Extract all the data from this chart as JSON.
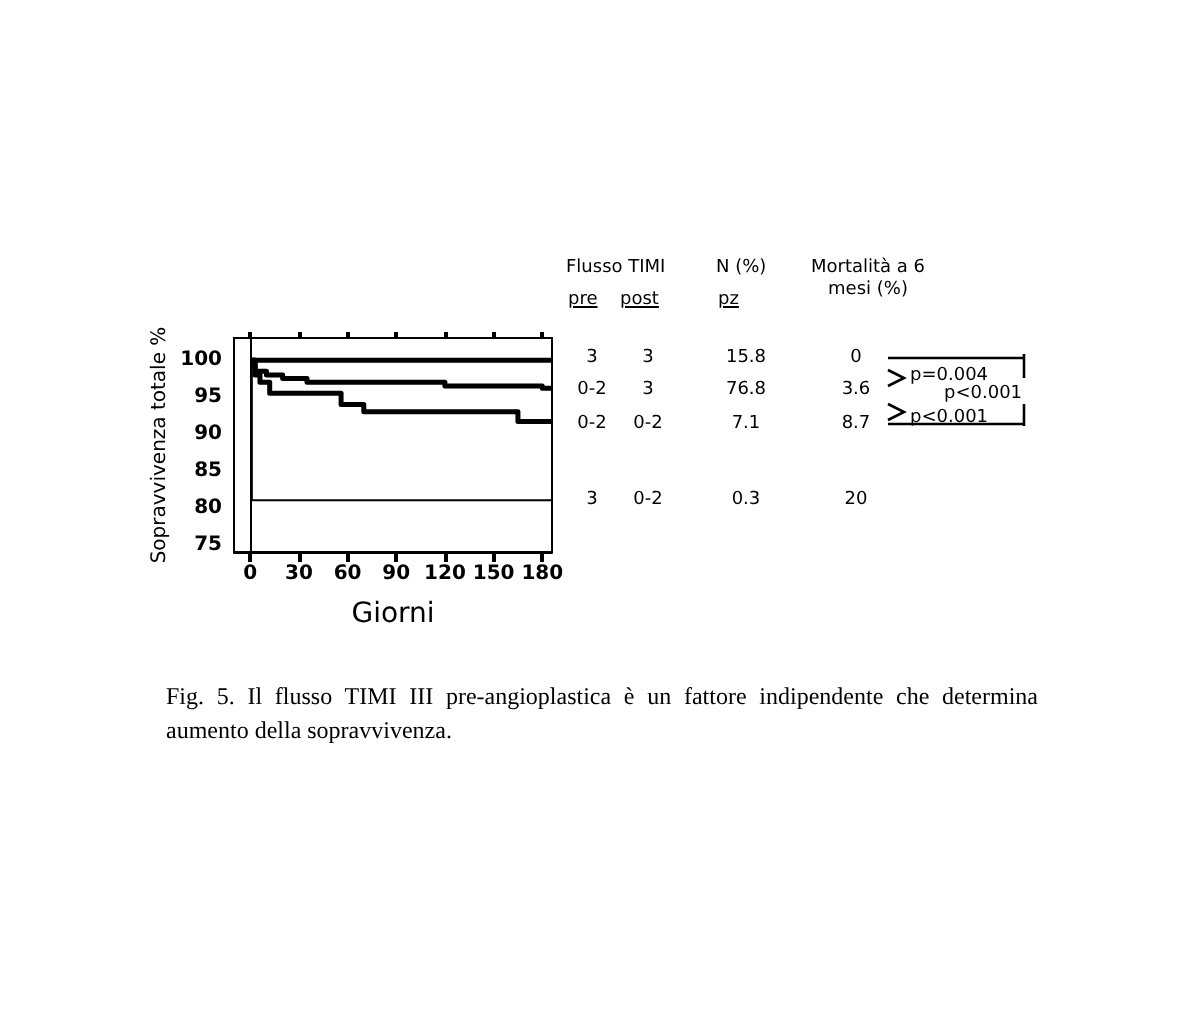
{
  "chart_data": {
    "type": "step",
    "xlabel": "Giorni",
    "ylabel": "Sopravvivenza totale %",
    "xlim": [
      -10,
      186
    ],
    "xticks": [
      0,
      30,
      60,
      90,
      120,
      150,
      180
    ],
    "ylim": [
      74,
      103
    ],
    "yticks": [
      75,
      80,
      85,
      90,
      95,
      100
    ],
    "grid": false,
    "marker": "none",
    "line_style": "solid",
    "series": [
      {
        "color": "#000000",
        "x": [
          0,
          186
        ],
        "values": [
          100,
          100
        ]
      },
      {
        "color": "#000000",
        "x": [
          0,
          3,
          10,
          20,
          35,
          120,
          180,
          186
        ],
        "values": [
          100,
          98.5,
          98,
          97.5,
          97,
          96.5,
          96.2,
          96.2
        ]
      },
      {
        "color": "#000000",
        "x": [
          0,
          3,
          6,
          12,
          56,
          70,
          165,
          186
        ],
        "values": [
          100,
          98,
          97,
          95.5,
          94,
          93,
          91.7,
          91.7
        ]
      },
      {
        "color": "#000000",
        "x": [
          0,
          1,
          186
        ],
        "values": [
          100,
          81,
          81
        ]
      }
    ],
    "annotations": [
      "Flusso TIMI",
      "pre",
      "post",
      "N (%)",
      "pz",
      "Mortalità a 6 mesi (%)",
      "3",
      "3",
      "15.8",
      "0",
      "0-2",
      "3",
      "76.8",
      "3.6",
      "0-2",
      "0-2",
      "7.1",
      "8.7",
      "3",
      "0-2",
      "0.3",
      "20",
      "p=0.004",
      "p<0.001",
      "p<0.001",
      "Fig. 5. Il flusso TIMI III pre-angioplastica è un fattore indipendente che determina aumento della sopravvivenza."
    ]
  }
}
